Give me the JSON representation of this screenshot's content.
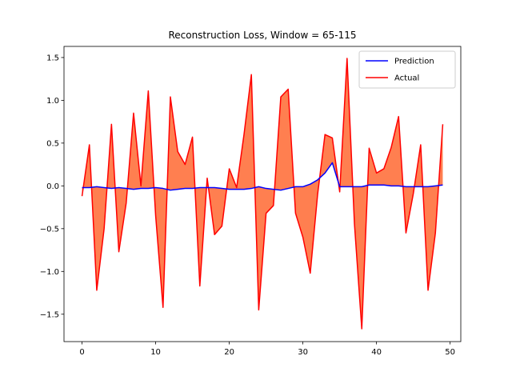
{
  "chart_data": {
    "type": "line",
    "title": "Reconstruction Loss, Window = 65-115",
    "xlabel": "",
    "ylabel": "",
    "xlim": [
      -2.45,
      51.45
    ],
    "ylim": [
      -1.82,
      1.63
    ],
    "xticks": [
      0,
      10,
      20,
      30,
      40,
      50
    ],
    "yticks": [
      -1.5,
      -1.0,
      -0.5,
      0.0,
      0.5,
      1.0,
      1.5
    ],
    "ytick_labels": [
      "−1.5",
      "−1.0",
      "−0.5",
      "0.0",
      "0.5",
      "1.0",
      "1.5"
    ],
    "grid": false,
    "legend": "top-right",
    "fill_between": {
      "series_a": "Prediction",
      "series_b": "Actual",
      "color": "#ff7f50"
    },
    "x": [
      0,
      1,
      2,
      3,
      4,
      5,
      6,
      7,
      8,
      9,
      10,
      11,
      12,
      13,
      14,
      15,
      16,
      17,
      18,
      19,
      20,
      21,
      22,
      23,
      24,
      25,
      26,
      27,
      28,
      29,
      30,
      31,
      32,
      33,
      34,
      35,
      36,
      37,
      38,
      39,
      40,
      41,
      42,
      43,
      44,
      45,
      46,
      47,
      48,
      49
    ],
    "series": [
      {
        "name": "Prediction",
        "color": "#0000ff",
        "values": [
          -0.02,
          -0.02,
          -0.01,
          -0.02,
          -0.03,
          -0.02,
          -0.03,
          -0.04,
          -0.03,
          -0.03,
          -0.02,
          -0.03,
          -0.05,
          -0.04,
          -0.03,
          -0.03,
          -0.02,
          -0.02,
          -0.02,
          -0.03,
          -0.04,
          -0.04,
          -0.04,
          -0.03,
          -0.01,
          -0.03,
          -0.04,
          -0.05,
          -0.03,
          -0.01,
          -0.01,
          0.02,
          0.07,
          0.15,
          0.27,
          -0.01,
          -0.01,
          -0.01,
          -0.01,
          0.01,
          0.01,
          0.01,
          0.0,
          0.0,
          -0.01,
          -0.01,
          -0.01,
          -0.01,
          0.0,
          0.01
        ]
      },
      {
        "name": "Actual",
        "color": "#ff0000",
        "values": [
          -0.12,
          0.48,
          -1.22,
          -0.5,
          0.72,
          -0.77,
          -0.2,
          0.85,
          0.0,
          1.11,
          -0.35,
          -1.42,
          1.04,
          0.4,
          0.25,
          0.57,
          -1.17,
          0.09,
          -0.57,
          -0.47,
          0.2,
          -0.02,
          0.6,
          1.3,
          -1.45,
          -0.32,
          -0.23,
          1.04,
          1.13,
          -0.32,
          -0.6,
          -1.02,
          -0.1,
          0.6,
          0.56,
          -0.07,
          1.49,
          -0.44,
          -1.67,
          0.44,
          0.15,
          0.2,
          0.45,
          0.81,
          -0.55,
          -0.09,
          0.48,
          -1.22,
          -0.55,
          0.72
        ]
      }
    ]
  }
}
